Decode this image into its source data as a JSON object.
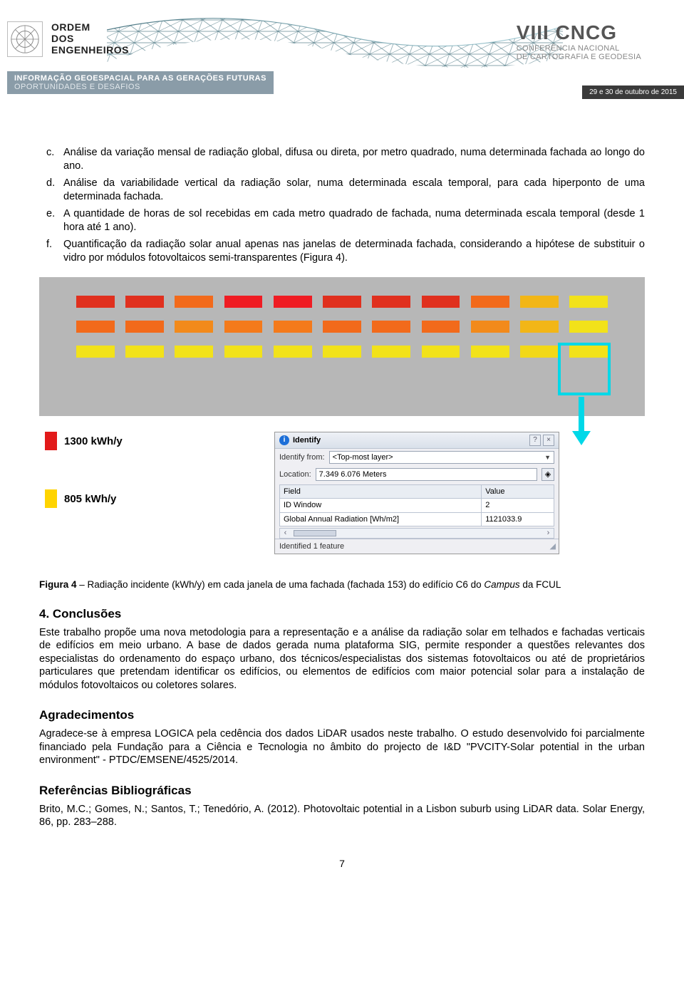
{
  "header": {
    "org_lines": [
      "ORDEM",
      "DOS",
      "ENGENHEIROS"
    ],
    "conf_main": "VIII CNCG",
    "conf_sub1": "CONFERÊNCIA NACIONAL",
    "conf_sub2": "DE CARTOGRAFIA E GEODESIA",
    "bar_main": "INFORMAÇÃO GEOESPACIAL PARA AS GERAÇÕES FUTURAS",
    "bar_sec": "OPORTUNIDADES E DESAFIOS",
    "date_text": "29 e 30 de outubro de 2015"
  },
  "list_items": [
    {
      "marker": "c.",
      "text": "Análise da variação mensal de radiação global, difusa ou direta, por metro quadrado, numa determinada fachada ao longo do ano."
    },
    {
      "marker": "d.",
      "text": "Análise da variabilidade vertical da radiação solar, numa determinada escala temporal, para cada hiperponto de uma determinada fachada."
    },
    {
      "marker": "e.",
      "text": "A quantidade de horas de sol recebidas em cada metro quadrado de fachada, numa determinada escala temporal (desde 1 hora até 1 ano)."
    },
    {
      "marker": "f.",
      "text": "Quantificação da radiação solar anual apenas nas janelas de determinada fachada, considerando a hipótese de substituir o vidro por módulos fotovoltaicos semi-transparentes (Figura 4)."
    }
  ],
  "figure": {
    "panel_bg": "#b7b7b7",
    "highlight_color": "#00d8e8",
    "arrow_color": "#00d8e8",
    "rows": [
      [
        "#e0301e",
        "#e0301e",
        "#f26a1b",
        "#ef1c23",
        "#ef1c23",
        "#e0301e",
        "#e0301e",
        "#e0301e",
        "#f26a1b",
        "#f2b617",
        "#f2e21a"
      ],
      [
        "#f26a1b",
        "#f26a1b",
        "#f28a1b",
        "#f47a1b",
        "#f47a1b",
        "#f26a1b",
        "#f26a1b",
        "#f26a1b",
        "#f28a1b",
        "#f2b617",
        "#f2e21a"
      ],
      [
        "#f2e21a",
        "#f2e21a",
        "#f2e21a",
        "#f2e21a",
        "#f2e21a",
        "#f2e21a",
        "#f2e21a",
        "#f2e21a",
        "#f2e21a",
        "#f2d817",
        "#f2e21a"
      ]
    ],
    "legend_high": "1300 kWh/y",
    "legend_low": "805 kWh/y",
    "legend_high_color": "#e21a1a",
    "legend_low_color": "#ffd400",
    "identify": {
      "title": "Identify",
      "from_label": "Identify from:",
      "from_value": "<Top-most layer>",
      "location_label": "Location:",
      "location_value": "7.349  6.076 Meters",
      "col_field": "Field",
      "col_value": "Value",
      "rows": [
        {
          "f": "ID Window",
          "v": "2"
        },
        {
          "f": "Global Annual Radiation [Wh/m2]",
          "v": "1121033.9"
        }
      ],
      "status": "Identified 1 feature"
    },
    "caption_prefix": "Figura 4",
    "caption_body": " – Radiação incidente (kWh/y) em cada janela de uma fachada (fachada 153) do edifício C6 do ",
    "caption_em": "Campus",
    "caption_tail": " da FCUL"
  },
  "sections": {
    "conclusions_h": "4. Conclusões",
    "conclusions_p": "Este trabalho propõe uma nova metodologia para a representação e a análise da radiação solar em telhados e fachadas verticais de edifícios em meio urbano. A base de dados gerada numa plataforma SIG, permite responder a questões relevantes dos especialistas do ordenamento do espaço urbano, dos técnicos/especialistas dos sistemas fotovoltaicos ou até de proprietários particulares que pretendam identificar os edifícios, ou elementos de edifícios com maior potencial solar para a instalação de módulos fotovoltaicos ou coletores solares.",
    "thanks_h": "Agradecimentos",
    "thanks_p": "Agradece-se à empresa LOGICA pela cedência dos dados LiDAR usados neste trabalho. O estudo desenvolvido foi parcialmente financiado pela Fundação para a Ciência e Tecnologia no âmbito do projecto de I&D \"PVCITY-Solar potential in the urban environment\" - PTDC/EMSENE/4525/2014.",
    "refs_h": "Referências Bibliográficas",
    "refs_p": "Brito, M.C.; Gomes, N.; Santos, T.; Tenedório, A. (2012). Photovoltaic potential in a Lisbon suburb using LiDAR data. Solar Energy, 86, pp. 283–288."
  },
  "page_number": "7"
}
